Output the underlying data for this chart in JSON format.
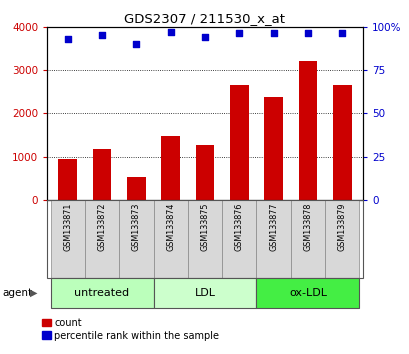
{
  "title": "GDS2307 / 211530_x_at",
  "samples": [
    "GSM133871",
    "GSM133872",
    "GSM133873",
    "GSM133874",
    "GSM133875",
    "GSM133876",
    "GSM133877",
    "GSM133878",
    "GSM133879"
  ],
  "counts": [
    950,
    1175,
    520,
    1480,
    1280,
    2650,
    2380,
    3200,
    2650
  ],
  "percentile_ranks": [
    93,
    95,
    90,
    97,
    94,
    96,
    96,
    96,
    96
  ],
  "groups": [
    {
      "label": "untreated",
      "indices": [
        0,
        1,
        2
      ],
      "color": "#bbffbb"
    },
    {
      "label": "LDL",
      "indices": [
        3,
        4,
        5
      ],
      "color": "#ccffcc"
    },
    {
      "label": "ox-LDL",
      "indices": [
        6,
        7,
        8
      ],
      "color": "#44ee44"
    }
  ],
  "bar_color": "#cc0000",
  "scatter_color": "#0000cc",
  "ylim_left": [
    0,
    4000
  ],
  "ylim_right": [
    0,
    100
  ],
  "yticks_left": [
    0,
    1000,
    2000,
    3000,
    4000
  ],
  "ytick_labels_left": [
    "0",
    "1000",
    "2000",
    "3000",
    "4000"
  ],
  "yticks_right": [
    0,
    25,
    50,
    75,
    100
  ],
  "ytick_labels_right": [
    "0",
    "25",
    "50",
    "75",
    "100%"
  ],
  "bg_color": "#ffffff",
  "agent_label": "agent",
  "legend_count_label": "count",
  "legend_pct_label": "percentile rank within the sample",
  "fig_width": 4.1,
  "fig_height": 3.54,
  "dpi": 100
}
